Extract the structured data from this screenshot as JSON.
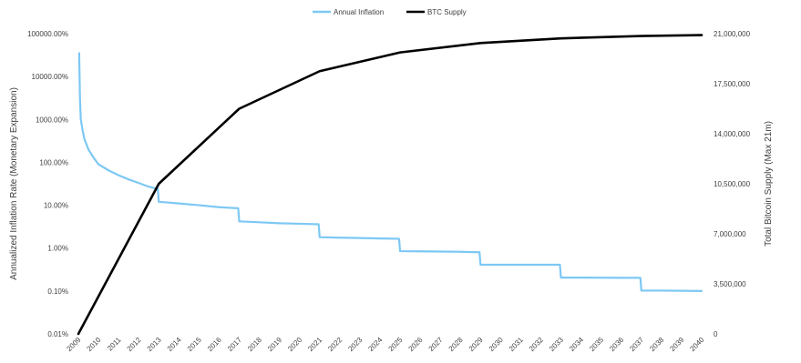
{
  "chart_data": {
    "type": "line",
    "title": "",
    "legend": {
      "position": "top-center",
      "entries": [
        "Annual Inflation",
        "BTC Supply"
      ]
    },
    "x_axis": {
      "label": "",
      "ticks": [
        "2009",
        "2010",
        "2011",
        "2012",
        "2013",
        "2014",
        "2015",
        "2016",
        "2017",
        "2018",
        "2019",
        "2020",
        "2021",
        "2022",
        "2023",
        "2024",
        "2025",
        "2026",
        "2027",
        "2028",
        "2029",
        "2030",
        "2031",
        "2032",
        "2033",
        "2034",
        "2035",
        "2036",
        "2037",
        "2038",
        "2039",
        "2040"
      ],
      "range": [
        2009,
        2040
      ]
    },
    "y_axis_left": {
      "label": "Annualized Inflation Rate (Monetary Expansion)",
      "scale": "log",
      "unit": "%",
      "ticks": [
        "0.01%",
        "0.10%",
        "1.00%",
        "10.00%",
        "100.00%",
        "1000.00%",
        "10000.00%",
        "100000.00%"
      ],
      "tick_values": [
        0.01,
        0.1,
        1,
        10,
        100,
        1000,
        10000,
        100000
      ],
      "range": [
        0.01,
        100000
      ]
    },
    "y_axis_right": {
      "label": "Total Bitcoin Supply (Max 21m)",
      "scale": "linear",
      "ticks": [
        "0",
        "3,500,000",
        "7,000,000",
        "10,500,000",
        "14,000,000",
        "17,500,000",
        "21,000,000"
      ],
      "tick_values": [
        0,
        3500000,
        7000000,
        10500000,
        14000000,
        17500000,
        21000000
      ],
      "range": [
        0,
        21000000
      ]
    },
    "grid": false,
    "series": [
      {
        "name": "Annual Inflation",
        "axis": "left",
        "color": "#7dc8f4",
        "style": "step",
        "x": [
          2009.04,
          2009.08,
          2009.12,
          2009.2,
          2009.3,
          2009.5,
          2009.75,
          2010,
          2010.5,
          2011,
          2011.5,
          2012,
          2012.5,
          2012.95,
          2013,
          2013.5,
          2014,
          2015,
          2016,
          2016.95,
          2017,
          2018,
          2019,
          2020,
          2020.95,
          2021,
          2022,
          2023,
          2024,
          2024.95,
          2025,
          2026,
          2027,
          2028,
          2028.95,
          2029,
          2030,
          2031,
          2032,
          2032.95,
          2033,
          2034,
          2035,
          2036,
          2036.95,
          2037,
          2038,
          2039,
          2040
        ],
        "y": [
          35000,
          3000,
          1000,
          600,
          350,
          200,
          130,
          90,
          65,
          50,
          40,
          33,
          27,
          24,
          12,
          11.5,
          11,
          10,
          9,
          8.5,
          4.2,
          4,
          3.8,
          3.7,
          3.6,
          1.8,
          1.75,
          1.72,
          1.68,
          1.65,
          0.85,
          0.84,
          0.83,
          0.82,
          0.8,
          0.41,
          0.41,
          0.41,
          0.41,
          0.41,
          0.205,
          0.205,
          0.204,
          0.203,
          0.203,
          0.102,
          0.102,
          0.101,
          0.1
        ]
      },
      {
        "name": "BTC Supply",
        "axis": "right",
        "color": "#000000",
        "style": "line",
        "x": [
          2009,
          2013,
          2017,
          2021,
          2025,
          2029,
          2033,
          2037,
          2040
        ],
        "y": [
          0,
          10500000,
          15750000,
          18375000,
          19687500,
          20343750,
          20671875,
          20835938,
          20900000
        ]
      }
    ]
  }
}
